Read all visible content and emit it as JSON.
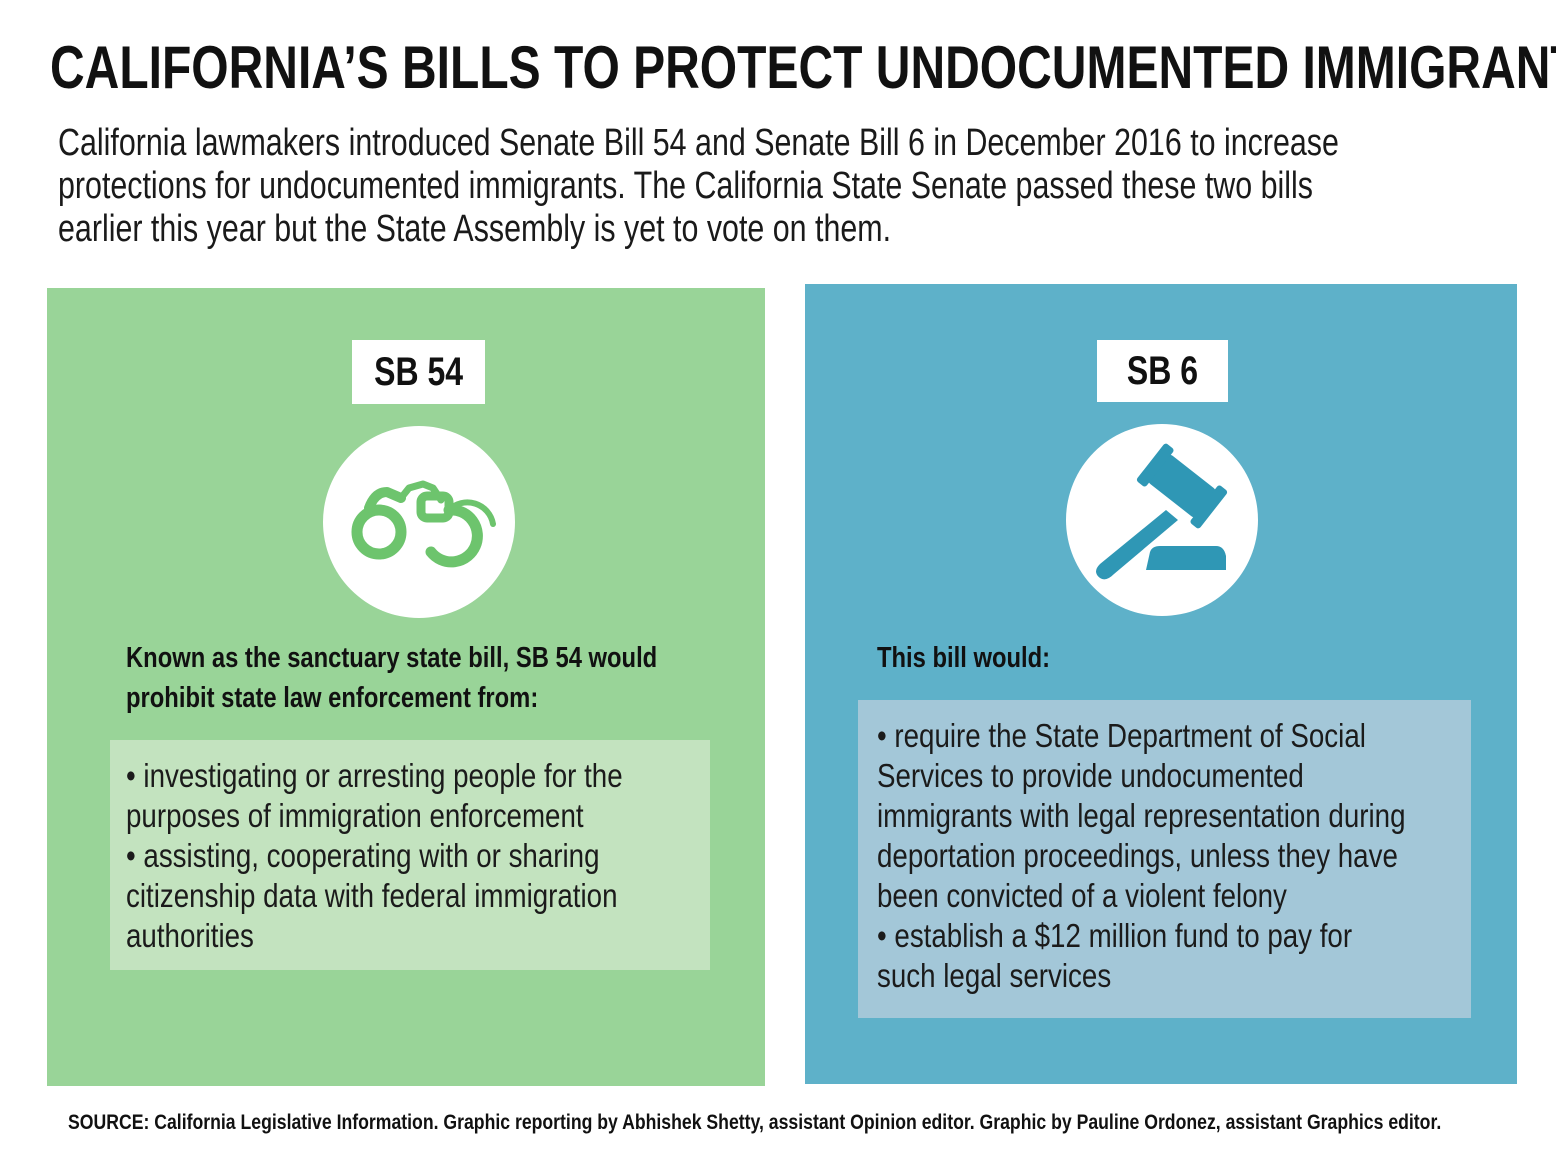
{
  "title": "CALIFORNIA’S BILLS TO PROTECT UNDOCUMENTED IMMIGRANTS",
  "intro_lines": [
    "California lawmakers introduced Senate Bill 54 and Senate Bill 6 in December 2016 to increase",
    "protections for undocumented immigrants. The California State Senate passed these two bills",
    "earlier this year but the State Assembly is yet to vote on them."
  ],
  "sb54": {
    "tag": "SB 54",
    "icon": "handcuffs-icon",
    "lead_lines": [
      "Known as the sanctuary state bill, SB 54 would",
      "prohibit state law enforcement from:"
    ],
    "list_lines": [
      "• investigating or arresting people for the",
      "purposes of immigration enforcement",
      "• assisting, cooperating with or sharing",
      "citizenship data with federal immigration",
      "authorities"
    ],
    "colors": {
      "panel": "#99d498",
      "box": "#c3e3bf",
      "icon": "#6dc46d"
    }
  },
  "sb6": {
    "tag": "SB 6",
    "icon": "gavel-icon",
    "lead_lines": [
      "This bill would:"
    ],
    "list_lines": [
      "• require the State Department of Social",
      "Services to provide undocumented",
      "immigrants with legal representation during",
      "deportation proceedings, unless they have",
      "been convicted of a violent felony",
      "• establish a $12 million fund to pay for",
      "such legal services"
    ],
    "colors": {
      "panel": "#5eb1c9",
      "box": "#a3c7d8",
      "icon": "#2f97b5"
    }
  },
  "source": "SOURCE: California Legislative Information. Graphic reporting by Abhishek Shetty, assistant Opinion editor. Graphic by Pauline Ordonez, assistant Graphics editor."
}
